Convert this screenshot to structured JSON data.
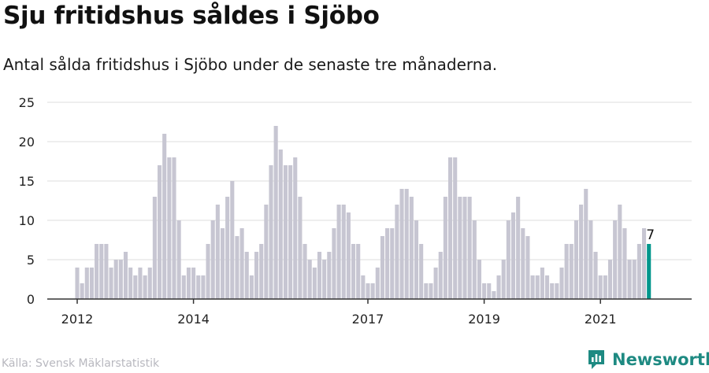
{
  "title": "Sju fritidshus såldes i Sjöbo",
  "subtitle": "Antal sålda fritidshus i Sjöbo under de senaste tre månaderna.",
  "source": "Källa: Svensk Mäklarstatistik",
  "brand": {
    "name": "Newsworthy",
    "icon": "newsworthy-logo-icon"
  },
  "colors": {
    "bar": "#c7c6d2",
    "highlight": "#00968c",
    "grid": "#dcdcdc",
    "axis": "#333333",
    "brand": "#1e8a82"
  },
  "chart_data": {
    "type": "bar",
    "y_ticks": [
      0,
      5,
      10,
      15,
      20,
      25
    ],
    "ylim": [
      0,
      25
    ],
    "x_ticks": [
      {
        "label": "2012",
        "index": 0
      },
      {
        "label": "2014",
        "index": 24
      },
      {
        "label": "2017",
        "index": 60
      },
      {
        "label": "2019",
        "index": 84
      },
      {
        "label": "2021",
        "index": 108
      }
    ],
    "values": [
      4,
      2,
      4,
      4,
      7,
      7,
      7,
      4,
      5,
      5,
      6,
      4,
      3,
      4,
      3,
      4,
      13,
      17,
      21,
      18,
      18,
      10,
      3,
      4,
      4,
      3,
      3,
      7,
      10,
      12,
      9,
      13,
      15,
      8,
      9,
      6,
      3,
      6,
      7,
      12,
      17,
      22,
      19,
      17,
      17,
      18,
      13,
      7,
      5,
      4,
      6,
      5,
      6,
      9,
      12,
      12,
      11,
      7,
      7,
      3,
      2,
      2,
      4,
      8,
      9,
      9,
      12,
      14,
      14,
      13,
      10,
      7,
      2,
      2,
      4,
      6,
      13,
      18,
      18,
      13,
      13,
      13,
      10,
      5,
      2,
      2,
      1,
      3,
      5,
      10,
      11,
      13,
      9,
      8,
      3,
      3,
      4,
      3,
      2,
      2,
      4,
      7,
      7,
      10,
      12,
      14,
      10,
      6,
      3,
      3,
      5,
      10,
      12,
      9,
      5,
      5,
      7,
      9,
      7
    ],
    "last_label": "7"
  }
}
